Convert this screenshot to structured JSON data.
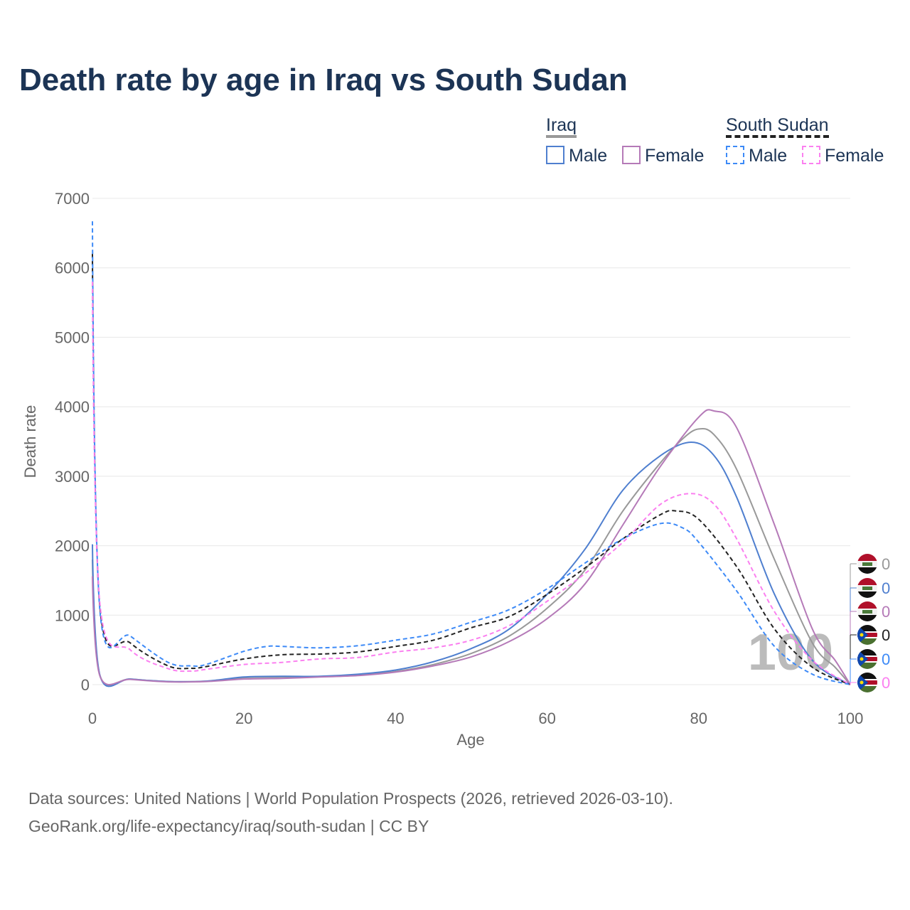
{
  "title": "Death rate by age in Iraq vs South Sudan",
  "legend": {
    "group1": "Iraq",
    "group2": "South Sudan",
    "male": "Male",
    "female": "Female"
  },
  "source_line1": "Data sources: United Nations | World Population Prospects (2026, retrieved 2026-03-10).",
  "source_line2": "GeoRank.org/life-expectancy/iraq/south-sudan | CC BY",
  "chart_data": {
    "type": "line",
    "xlabel": "Age",
    "ylabel": "Death rate",
    "xlim": [
      0,
      100
    ],
    "ylim": [
      0,
      7000
    ],
    "xticks": [
      0,
      20,
      40,
      60,
      80,
      100
    ],
    "yticks": [
      0,
      1000,
      2000,
      3000,
      4000,
      5000,
      6000,
      7000
    ],
    "slider_age": "100",
    "series": [
      {
        "name": "Iraq",
        "color": "#999999",
        "dash": false,
        "end_value": "0",
        "x": [
          0,
          1,
          5,
          10,
          15,
          20,
          25,
          30,
          35,
          40,
          45,
          50,
          55,
          60,
          65,
          70,
          75,
          78,
          80,
          82,
          85,
          90,
          95,
          98,
          100
        ],
        "y": [
          1800,
          130,
          80,
          45,
          50,
          100,
          110,
          115,
          140,
          190,
          290,
          450,
          700,
          1100,
          1650,
          2500,
          3200,
          3550,
          3680,
          3600,
          3100,
          1800,
          600,
          250,
          0
        ]
      },
      {
        "name": "Iraq Male",
        "color": "#4f7fcf",
        "dash": false,
        "end_value": "0",
        "x": [
          0,
          1,
          5,
          10,
          15,
          20,
          25,
          30,
          35,
          40,
          45,
          50,
          55,
          60,
          65,
          70,
          75,
          79,
          82,
          85,
          90,
          95,
          100
        ],
        "y": [
          2020,
          130,
          80,
          45,
          50,
          110,
          120,
          120,
          150,
          210,
          330,
          520,
          800,
          1300,
          1950,
          2800,
          3300,
          3490,
          3300,
          2700,
          1300,
          350,
          0
        ]
      },
      {
        "name": "Iraq Female",
        "color": "#b57ab8",
        "dash": false,
        "end_value": "0",
        "x": [
          0,
          1,
          5,
          10,
          15,
          20,
          25,
          30,
          35,
          40,
          45,
          50,
          55,
          60,
          65,
          70,
          75,
          80,
          82,
          85,
          90,
          95,
          98,
          100
        ],
        "y": [
          1560,
          120,
          75,
          40,
          45,
          80,
          90,
          110,
          130,
          180,
          270,
          400,
          620,
          950,
          1450,
          2300,
          3150,
          3850,
          3940,
          3700,
          2300,
          800,
          350,
          0
        ]
      },
      {
        "name": "South Sudan",
        "color": "#222222",
        "dash": true,
        "end_value": "0",
        "x": [
          0,
          1,
          5,
          10,
          13,
          15,
          20,
          25,
          30,
          35,
          40,
          45,
          50,
          55,
          60,
          65,
          70,
          75,
          77,
          80,
          85,
          90,
          95,
          100
        ],
        "y": [
          6200,
          1100,
          600,
          270,
          235,
          260,
          370,
          430,
          440,
          470,
          550,
          640,
          820,
          980,
          1300,
          1680,
          2100,
          2450,
          2500,
          2380,
          1700,
          800,
          250,
          0
        ]
      },
      {
        "name": "South Sudan Male",
        "color": "#3d8af7",
        "dash": true,
        "end_value": "0",
        "x": [
          0,
          1,
          5,
          10,
          13,
          15,
          20,
          23,
          25,
          30,
          35,
          40,
          45,
          50,
          55,
          60,
          65,
          70,
          75,
          78,
          80,
          85,
          90,
          95,
          100
        ],
        "y": [
          6670,
          1050,
          700,
          320,
          270,
          290,
          480,
          550,
          550,
          530,
          560,
          640,
          730,
          900,
          1080,
          1380,
          1750,
          2100,
          2320,
          2250,
          2050,
          1350,
          550,
          150,
          0
        ]
      },
      {
        "name": "South Sudan Female",
        "color": "#fb80f0",
        "dash": true,
        "end_value": "0",
        "x": [
          0,
          1,
          5,
          10,
          13,
          15,
          20,
          25,
          30,
          35,
          40,
          45,
          50,
          55,
          60,
          65,
          70,
          75,
          79,
          82,
          85,
          90,
          95,
          100
        ],
        "y": [
          5800,
          1150,
          500,
          230,
          195,
          220,
          290,
          320,
          370,
          390,
          470,
          530,
          640,
          850,
          1200,
          1600,
          2050,
          2600,
          2750,
          2600,
          2100,
          1050,
          350,
          0
        ]
      }
    ]
  }
}
